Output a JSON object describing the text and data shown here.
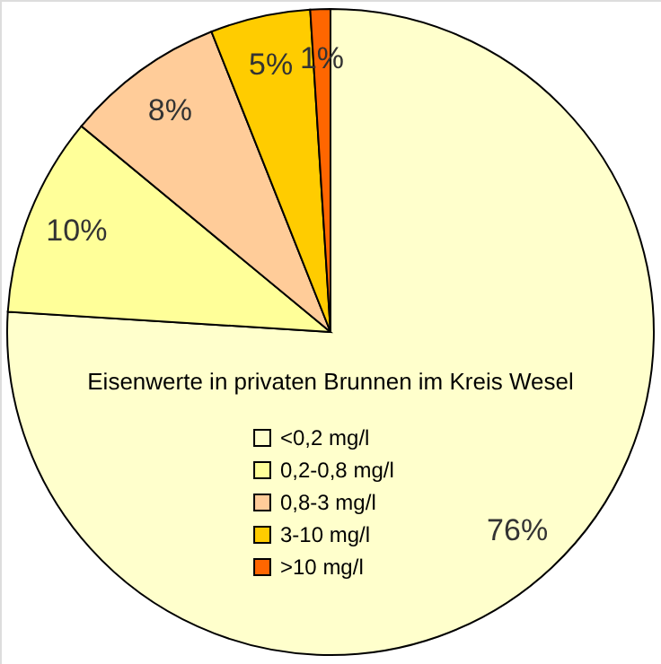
{
  "chart_data": {
    "type": "pie",
    "title": "Eisenwerte in privaten Brunnen im Kreis Wesel",
    "categories": [
      "<0,2 mg/l",
      "0,2-0,8 mg/l",
      "0,8-3 mg/l",
      "3-10 mg/l",
      ">10 mg/l"
    ],
    "values": [
      76,
      10,
      8,
      5,
      1
    ],
    "value_labels": [
      "76%",
      "10%",
      "8%",
      "5%",
      "1%"
    ],
    "colors": [
      "#ffffcc",
      "#ffff99",
      "#ffcc99",
      "#ffcc00",
      "#ff6600"
    ],
    "legend": "bottom"
  }
}
